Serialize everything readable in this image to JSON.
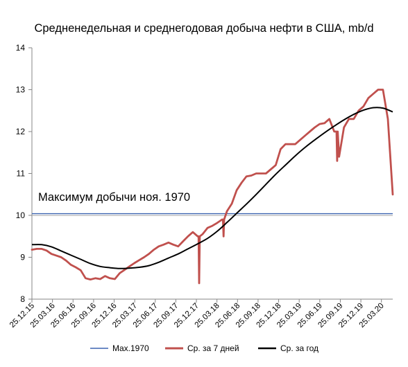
{
  "chart_data": {
    "type": "line",
    "title": "Средненедельная и среднегодовая добыча нефти в США, mb/d",
    "xlabel": "",
    "ylabel": "",
    "ylim": [
      8,
      14
    ],
    "y_ticks": [
      8,
      9,
      10,
      11,
      12,
      13,
      14
    ],
    "grid": false,
    "legend_position": "bottom",
    "x_tick_labels": [
      "25.12.15",
      "25.03.16",
      "25.06.16",
      "25.09.16",
      "25.12.16",
      "25.03.17",
      "25.06.17",
      "25.09.17",
      "25.12.17",
      "25.03.18",
      "25.06.18",
      "25.09.18",
      "25.12.18",
      "25.03.19",
      "25.06.19",
      "25.09.19",
      "25.12.19",
      "25.03.20"
    ],
    "annotation": "Максимум добычи ноя. 1970",
    "series": [
      {
        "name": "Max.1970",
        "color": "#4472c4",
        "x": [
          0,
          74
        ],
        "values": [
          10.04,
          10.04
        ]
      },
      {
        "name": "Ср. за 7 дней",
        "color": "#c0504d",
        "x": [
          0,
          1,
          2,
          3,
          4,
          5,
          6,
          7,
          8,
          9,
          10,
          11,
          12,
          13,
          14,
          15,
          16,
          17,
          18,
          19,
          20,
          21,
          22,
          23,
          24,
          25,
          26,
          27,
          28,
          29,
          30,
          31,
          32,
          33,
          34,
          35,
          36,
          37,
          38,
          39,
          40,
          41,
          42,
          43,
          44,
          45,
          46,
          47,
          48,
          49,
          50,
          51,
          52,
          53,
          54,
          55,
          56,
          57,
          58,
          59,
          60,
          61,
          62,
          63,
          64,
          65,
          66,
          67,
          68,
          69,
          70,
          71,
          72,
          73,
          74
        ],
        "values": [
          9.18,
          9.2,
          9.2,
          9.16,
          9.08,
          9.04,
          9.0,
          8.92,
          8.82,
          8.76,
          8.69,
          8.5,
          8.47,
          8.5,
          8.48,
          8.55,
          8.5,
          8.48,
          8.62,
          8.7,
          8.78,
          8.86,
          8.93,
          9.0,
          9.08,
          9.18,
          9.26,
          9.3,
          9.35,
          9.3,
          9.26,
          9.38,
          9.5,
          9.6,
          9.5,
          9.55,
          9.7,
          9.75,
          9.82,
          9.9,
          10.1,
          10.28,
          10.6,
          10.78,
          10.93,
          10.95,
          11.0,
          11.0,
          11.0,
          11.1,
          11.2,
          11.58,
          11.7,
          11.7,
          11.7,
          11.8,
          11.9,
          12.0,
          12.1,
          12.18,
          12.2,
          12.3,
          12.0,
          11.4,
          12.1,
          12.3,
          12.3,
          12.5,
          12.6,
          12.8,
          12.9,
          13.0,
          13.0,
          12.3,
          10.5
        ],
        "dips": [
          {
            "x": 34.3,
            "value": 8.38
          },
          {
            "x": 39.3,
            "value": 9.5
          },
          {
            "x": 62.6,
            "value": 11.3
          }
        ]
      },
      {
        "name": "Ср. за год",
        "color": "#000000",
        "x": [
          0,
          2,
          4,
          6,
          8,
          10,
          12,
          14,
          16,
          18,
          20,
          22,
          24,
          26,
          28,
          30,
          32,
          34,
          36,
          38,
          40,
          42,
          44,
          46,
          48,
          50,
          52,
          54,
          56,
          58,
          60,
          62,
          64,
          66,
          68,
          70,
          72,
          74
        ],
        "values": [
          9.3,
          9.3,
          9.25,
          9.15,
          9.05,
          8.95,
          8.85,
          8.78,
          8.75,
          8.73,
          8.74,
          8.76,
          8.8,
          8.88,
          8.98,
          9.08,
          9.2,
          9.32,
          9.45,
          9.62,
          9.83,
          10.05,
          10.27,
          10.5,
          10.74,
          10.98,
          11.2,
          11.42,
          11.62,
          11.8,
          11.97,
          12.13,
          12.28,
          12.41,
          12.51,
          12.57,
          12.56,
          12.47
        ]
      }
    ]
  }
}
